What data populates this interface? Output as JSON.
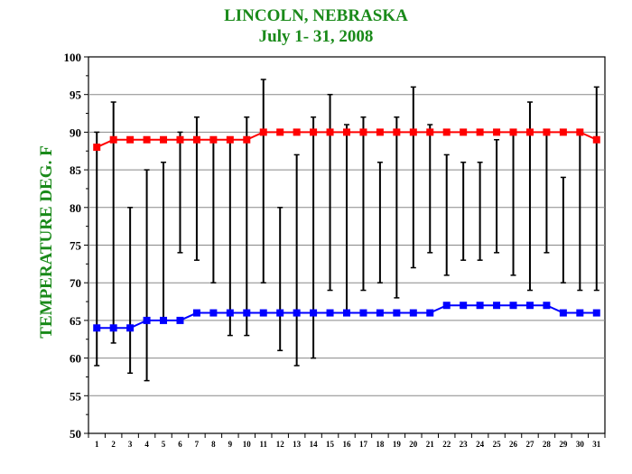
{
  "chart_data": {
    "type": "line",
    "title": "LINCOLN, NEBRASKA",
    "subtitle": "July 1- 31, 2008",
    "xlabel": "",
    "ylabel": "TEMPERATURE DEG. F",
    "ylim": [
      50,
      100
    ],
    "yticks": [
      50,
      55,
      60,
      65,
      70,
      75,
      80,
      85,
      90,
      95,
      100
    ],
    "x": [
      1,
      2,
      3,
      4,
      5,
      6,
      7,
      8,
      9,
      10,
      11,
      12,
      13,
      14,
      15,
      16,
      17,
      18,
      19,
      20,
      21,
      22,
      23,
      24,
      25,
      26,
      27,
      28,
      29,
      30,
      31
    ],
    "grid": true,
    "legend": "none",
    "series": [
      {
        "color": "#ff0000",
        "values": [
          88,
          89,
          89,
          89,
          89,
          89,
          89,
          89,
          89,
          89,
          90,
          90,
          90,
          90,
          90,
          90,
          90,
          90,
          90,
          90,
          90,
          90,
          90,
          90,
          90,
          90,
          90,
          90,
          90,
          90,
          89
        ]
      },
      {
        "color": "#0000ff",
        "values": [
          64,
          64,
          64,
          65,
          65,
          65,
          66,
          66,
          66,
          66,
          66,
          66,
          66,
          66,
          66,
          66,
          66,
          66,
          66,
          66,
          66,
          67,
          67,
          67,
          67,
          67,
          67,
          67,
          66,
          66,
          66
        ]
      }
    ],
    "daily_high": [
      90,
      94,
      80,
      85,
      86,
      90,
      92,
      89,
      89,
      92,
      97,
      80,
      87,
      92,
      95,
      91,
      92,
      86,
      92,
      96,
      91,
      87,
      86,
      86,
      89,
      90,
      94,
      90,
      84,
      90,
      96
    ],
    "daily_low": [
      59,
      62,
      58,
      57,
      65,
      74,
      73,
      70,
      63,
      63,
      70,
      61,
      59,
      60,
      69,
      66,
      69,
      70,
      68,
      72,
      74,
      71,
      73,
      73,
      74,
      71,
      69,
      74,
      70,
      69,
      69
    ]
  }
}
